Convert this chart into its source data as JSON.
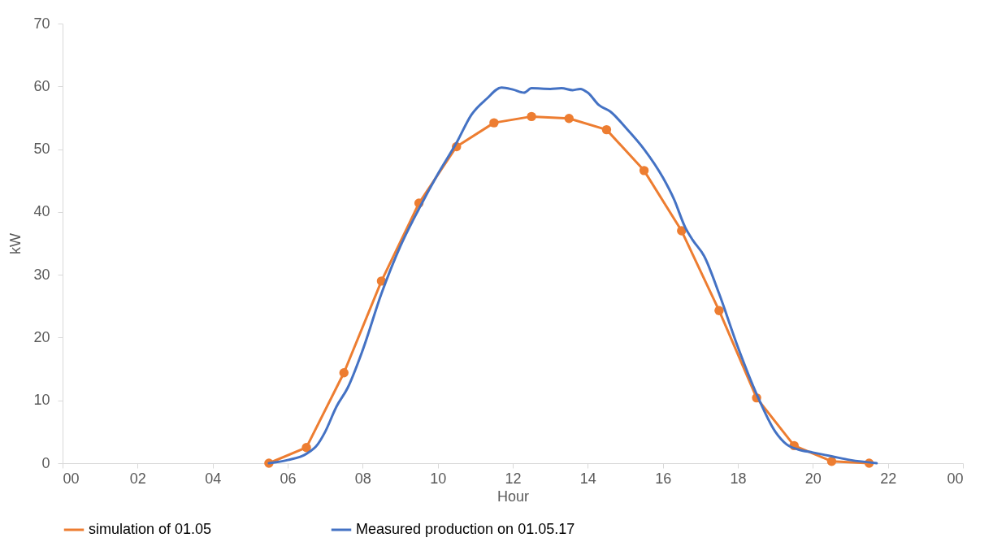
{
  "chart_data": {
    "type": "line",
    "xlabel": "Hour",
    "ylabel": "kW",
    "xlim": [
      0,
      24
    ],
    "xticks": [
      {
        "value": 0,
        "label": "00"
      },
      {
        "value": 2,
        "label": "02"
      },
      {
        "value": 4,
        "label": "04"
      },
      {
        "value": 6,
        "label": "06"
      },
      {
        "value": 8,
        "label": "08"
      },
      {
        "value": 10,
        "label": "10"
      },
      {
        "value": 12,
        "label": "12"
      },
      {
        "value": 14,
        "label": "14"
      },
      {
        "value": 16,
        "label": "16"
      },
      {
        "value": 18,
        "label": "18"
      },
      {
        "value": 20,
        "label": "20"
      },
      {
        "value": 22,
        "label": "22"
      },
      {
        "value": 24,
        "label": "00"
      }
    ],
    "ylim": [
      0,
      70
    ],
    "yticks": [
      0,
      10,
      20,
      30,
      40,
      50,
      60,
      70
    ],
    "grid": false,
    "legend": "bottom",
    "series": [
      {
        "name": "simulation of 01.05",
        "color": "#ed7d31",
        "marker": "circle",
        "x": [
          5.5,
          6.5,
          7.5,
          8.5,
          9.5,
          10.5,
          11.5,
          12.5,
          13.5,
          14.5,
          15.5,
          16.5,
          17.5,
          18.5,
          19.5,
          20.5,
          21.5
        ],
        "values": [
          0,
          2.5,
          14.4,
          29,
          41.4,
          50.4,
          54.2,
          55.2,
          54.9,
          53.1,
          46.6,
          37.0,
          24.3,
          10.4,
          2.8,
          0.3,
          0
        ]
      },
      {
        "name": "Measured production on 01.05.17",
        "color": "#4472c4",
        "marker": "none",
        "x": [
          5.5,
          6.0,
          6.5,
          6.8,
          7.0,
          7.3,
          7.6,
          8.0,
          8.5,
          9.0,
          9.5,
          10.0,
          10.5,
          10.9,
          11.3,
          11.7,
          12.0,
          12.3,
          12.5,
          13.0,
          13.3,
          13.6,
          13.8,
          14.0,
          14.3,
          14.6,
          15.0,
          15.5,
          16.0,
          16.3,
          16.6,
          16.8,
          17.1,
          17.5,
          18.0,
          18.5,
          19.0,
          19.3,
          19.6,
          20.0,
          20.5,
          21.0,
          21.7
        ],
        "values": [
          0,
          0.5,
          1.5,
          3,
          5,
          9,
          12,
          18,
          27,
          34.5,
          40.5,
          46,
          51,
          55.5,
          58,
          59.8,
          59.5,
          59,
          59.7,
          59.6,
          59.7,
          59.4,
          59.6,
          59,
          57,
          56,
          53.5,
          50,
          45.5,
          42,
          37.5,
          35.5,
          33,
          27,
          18.5,
          11,
          5,
          3,
          2.2,
          1.7,
          1.1,
          0.5,
          0
        ]
      }
    ]
  }
}
